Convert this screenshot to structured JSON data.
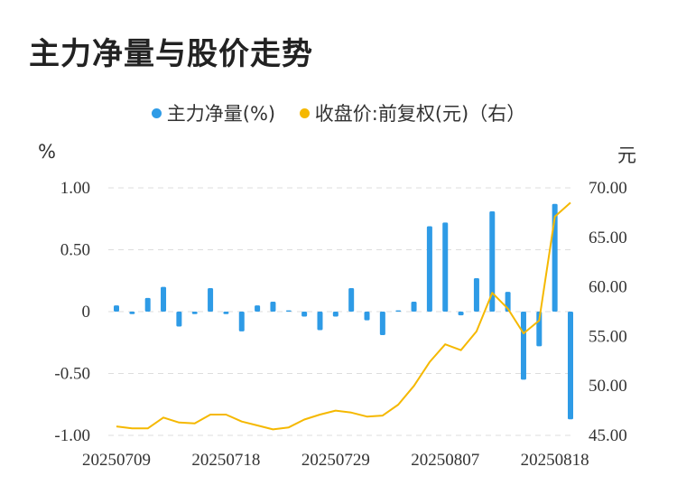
{
  "page": {
    "title": "主力净量与股价走势"
  },
  "legend": {
    "items": [
      {
        "label": "主力净量(%)",
        "color": "#2e9be6"
      },
      {
        "label": "收盘价:前复权(元)（右）",
        "color": "#f5b800"
      }
    ]
  },
  "chart_data": {
    "type": "bar+line",
    "title": "主力净量与股价走势",
    "left_unit": "%",
    "right_unit": "元",
    "left_axis": {
      "ticks": [
        "1.00",
        "0.50",
        "0",
        "-0.50",
        "-1.00"
      ],
      "range": [
        -1,
        1
      ]
    },
    "right_axis": {
      "ticks": [
        "70.00",
        "65.00",
        "60.00",
        "55.00",
        "50.00",
        "45.00"
      ],
      "range": [
        45,
        70
      ]
    },
    "x_tick_labels": [
      "20250709",
      "20250718",
      "20250729",
      "20250807",
      "20250818"
    ],
    "grid": true,
    "legend_position": "top-center",
    "x": [
      "20250709",
      "20250710",
      "20250711",
      "20250714",
      "20250715",
      "20250716",
      "20250717",
      "20250718",
      "20250721",
      "20250722",
      "20250723",
      "20250724",
      "20250725",
      "20250728",
      "20250729",
      "20250730",
      "20250731",
      "20250801",
      "20250804",
      "20250805",
      "20250806",
      "20250807",
      "20250808",
      "20250811",
      "20250812",
      "20250813",
      "20250814",
      "20250815",
      "20250818",
      "20250819"
    ],
    "series": [
      {
        "name": "主力净量(%)",
        "type": "bar",
        "axis": "left",
        "color": "#2e9be6",
        "values": [
          0.05,
          -0.02,
          0.11,
          0.2,
          -0.12,
          -0.02,
          0.19,
          -0.02,
          -0.16,
          0.05,
          0.08,
          0.01,
          -0.04,
          -0.15,
          -0.04,
          0.19,
          -0.07,
          -0.19,
          0.01,
          0.08,
          0.69,
          0.72,
          -0.03,
          0.27,
          0.81,
          0.16,
          -0.55,
          -0.28,
          0.87,
          -0.87
        ]
      },
      {
        "name": "收盘价:前复权(元)（右）",
        "type": "line",
        "axis": "right",
        "color": "#f5b800",
        "values": [
          45.9,
          45.7,
          45.7,
          46.8,
          46.3,
          46.2,
          47.1,
          47.1,
          46.4,
          46.0,
          45.6,
          45.8,
          46.6,
          47.1,
          47.5,
          47.3,
          46.9,
          47.0,
          48.1,
          50.0,
          52.4,
          54.2,
          53.6,
          55.5,
          59.4,
          57.8,
          55.3,
          56.6,
          67.1,
          68.5
        ]
      }
    ]
  }
}
